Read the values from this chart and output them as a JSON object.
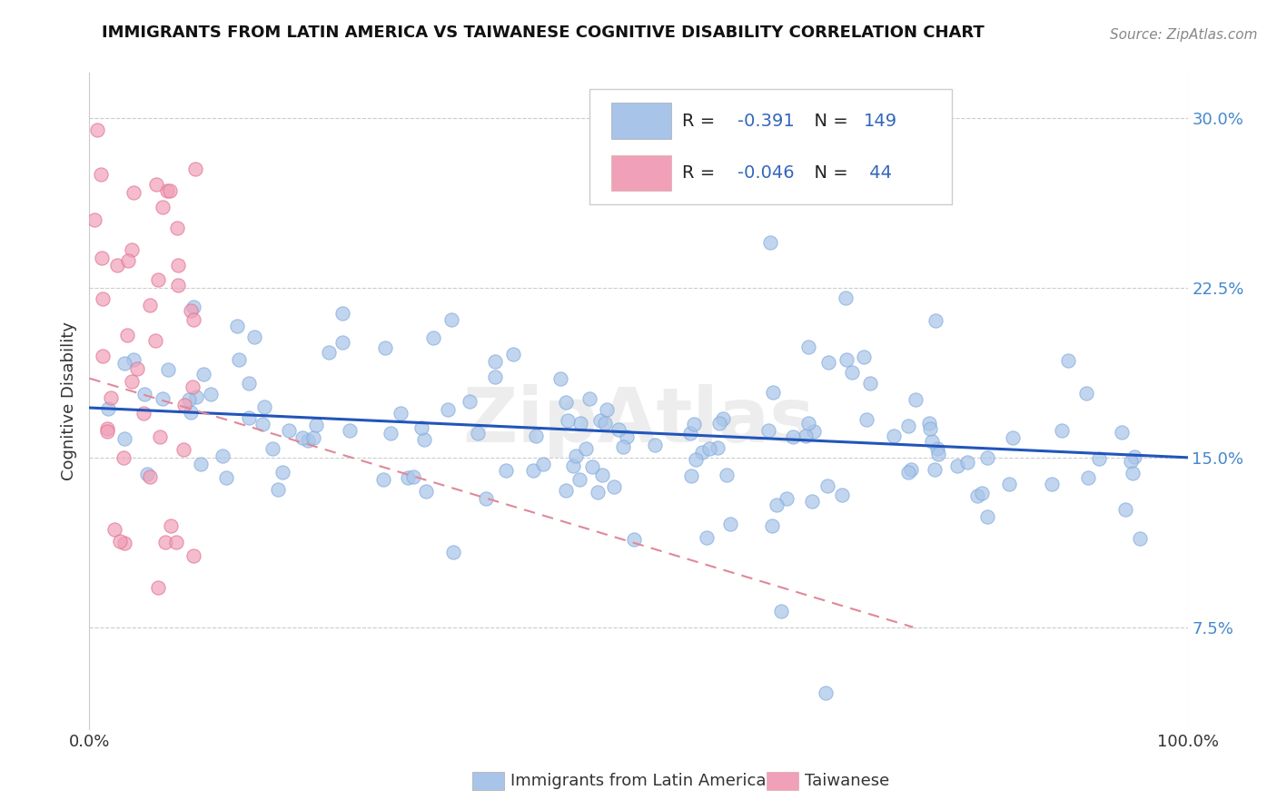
{
  "title": "IMMIGRANTS FROM LATIN AMERICA VS TAIWANESE COGNITIVE DISABILITY CORRELATION CHART",
  "source": "Source: ZipAtlas.com",
  "ylabel": "Cognitive Disability",
  "xlim": [
    0.0,
    1.0
  ],
  "ylim": [
    0.03,
    0.32
  ],
  "ytick_vals": [
    0.075,
    0.15,
    0.225,
    0.3
  ],
  "ytick_labels": [
    "7.5%",
    "15.0%",
    "22.5%",
    "30.0%"
  ],
  "blue_color": "#a8c4e8",
  "pink_color": "#f0a0b8",
  "blue_line_color": "#2255bb",
  "pink_line_color": "#e08898",
  "r_blue": -0.391,
  "n_blue": 149,
  "r_pink": -0.046,
  "n_pink": 44,
  "legend_label_blue": "Immigrants from Latin America",
  "legend_label_pink": "Taiwanese",
  "title_fontsize": 13,
  "tick_fontsize": 13,
  "right_tick_color": "#4488cc",
  "watermark": "ZipAtlas",
  "blue_trend_x0": 0.0,
  "blue_trend_y0": 0.172,
  "blue_trend_x1": 1.0,
  "blue_trend_y1": 0.15,
  "pink_trend_x0": 0.0,
  "pink_trend_y0": 0.185,
  "pink_trend_x1": 0.75,
  "pink_trend_y1": 0.075
}
